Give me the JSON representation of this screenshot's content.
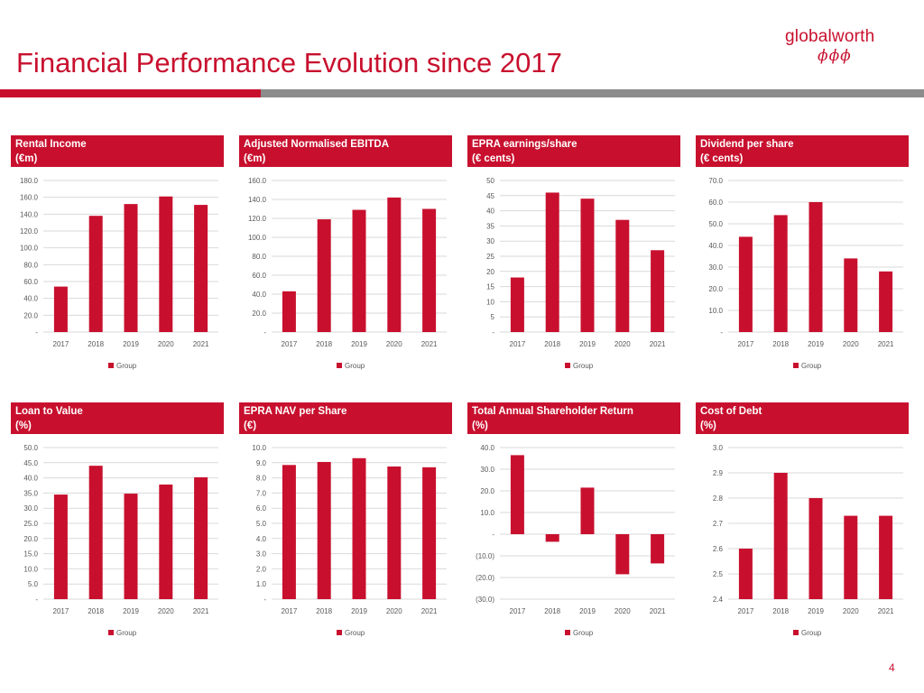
{
  "header": {
    "title": "Financial Performance Evolution since 2017",
    "logo_text": "globalworth",
    "logo_mark": "ϕϕϕ",
    "page_number": "4"
  },
  "colors": {
    "accent": "#c8102e",
    "grey": "#8c8c8c",
    "grid": "#d9d9d9",
    "tick": "#595959"
  },
  "chart_data": [
    {
      "type": "bar",
      "title": "Rental Income",
      "subtitle": "(€m)",
      "categories": [
        "2017",
        "2018",
        "2019",
        "2020",
        "2021"
      ],
      "series": [
        {
          "name": "Group",
          "values": [
            54,
            138,
            152,
            161,
            151
          ]
        }
      ],
      "ylim": [
        0,
        180
      ],
      "yticks": [
        "-",
        "20.0",
        "40.0",
        "60.0",
        "80.0",
        "100.0",
        "120.0",
        "140.0",
        "160.0",
        "180.0"
      ],
      "legend": "Group"
    },
    {
      "type": "bar",
      "title": "Adjusted Normalised EBITDA",
      "subtitle": "(€m)",
      "categories": [
        "2017",
        "2018",
        "2019",
        "2020",
        "2021"
      ],
      "series": [
        {
          "name": "Group",
          "values": [
            43,
            119,
            129,
            142,
            130
          ]
        }
      ],
      "ylim": [
        0,
        160
      ],
      "yticks": [
        "-",
        "20.0",
        "40.0",
        "60.0",
        "80.0",
        "100.0",
        "120.0",
        "140.0",
        "160.0"
      ],
      "legend": "Group"
    },
    {
      "type": "bar",
      "title": "EPRA earnings/share",
      "subtitle": "(€ cents)",
      "categories": [
        "2017",
        "2018",
        "2019",
        "2020",
        "2021"
      ],
      "series": [
        {
          "name": "Group",
          "values": [
            18,
            46,
            44,
            37,
            27
          ]
        }
      ],
      "ylim": [
        0,
        50
      ],
      "yticks": [
        "-",
        "5",
        "10",
        "15",
        "20",
        "25",
        "30",
        "35",
        "40",
        "45",
        "50"
      ],
      "legend": "Group"
    },
    {
      "type": "bar",
      "title": "Dividend per share",
      "subtitle": "(€ cents)",
      "categories": [
        "2017",
        "2018",
        "2019",
        "2020",
        "2021"
      ],
      "series": [
        {
          "name": "Group",
          "values": [
            44,
            54,
            60,
            34,
            28
          ]
        }
      ],
      "ylim": [
        0,
        70
      ],
      "yticks": [
        "-",
        "10.0",
        "20.0",
        "30.0",
        "40.0",
        "50.0",
        "60.0",
        "70.0"
      ],
      "legend": "Group"
    },
    {
      "type": "bar",
      "title": "Loan to Value",
      "subtitle": "(%)",
      "categories": [
        "2017",
        "2018",
        "2019",
        "2020",
        "2021"
      ],
      "series": [
        {
          "name": "Group",
          "values": [
            34.5,
            44,
            34.8,
            37.8,
            40.2
          ]
        }
      ],
      "ylim": [
        0,
        50
      ],
      "yticks": [
        "-",
        "5.0",
        "10.0",
        "15.0",
        "20.0",
        "25.0",
        "30.0",
        "35.0",
        "40.0",
        "45.0",
        "50.0"
      ],
      "legend": "Group"
    },
    {
      "type": "bar",
      "title": "EPRA NAV per Share",
      "subtitle": "(€)",
      "categories": [
        "2017",
        "2018",
        "2019",
        "2020",
        "2021"
      ],
      "series": [
        {
          "name": "Group",
          "values": [
            8.85,
            9.05,
            9.3,
            8.75,
            8.7
          ]
        }
      ],
      "ylim": [
        0,
        10
      ],
      "yticks": [
        "-",
        "1.0",
        "2.0",
        "3.0",
        "4.0",
        "5.0",
        "6.0",
        "7.0",
        "8.0",
        "9.0",
        "10.0"
      ],
      "legend": "Group"
    },
    {
      "type": "bar",
      "title": "Total Annual Shareholder Return",
      "subtitle": "(%)",
      "categories": [
        "2017",
        "2018",
        "2019",
        "2020",
        "2021"
      ],
      "series": [
        {
          "name": "Group",
          "values": [
            36.5,
            -3.5,
            21.5,
            -18.5,
            -13.5
          ]
        }
      ],
      "ylim": [
        -30,
        40
      ],
      "yticks": [
        "(30.0)",
        "(20.0)",
        "(10.0)",
        "-",
        "10.0",
        "20.0",
        "30.0",
        "40.0"
      ],
      "legend": "Group"
    },
    {
      "type": "bar",
      "title": "Cost of Debt",
      "subtitle": "(%)",
      "categories": [
        "2017",
        "2018",
        "2019",
        "2020",
        "2021"
      ],
      "series": [
        {
          "name": "Group",
          "values": [
            2.6,
            2.9,
            2.8,
            2.73,
            2.73
          ]
        }
      ],
      "ylim": [
        2.4,
        3.0
      ],
      "yticks": [
        "2.4",
        "2.5",
        "2.6",
        "2.7",
        "2.8",
        "2.9",
        "3.0"
      ],
      "legend": "Group"
    }
  ]
}
